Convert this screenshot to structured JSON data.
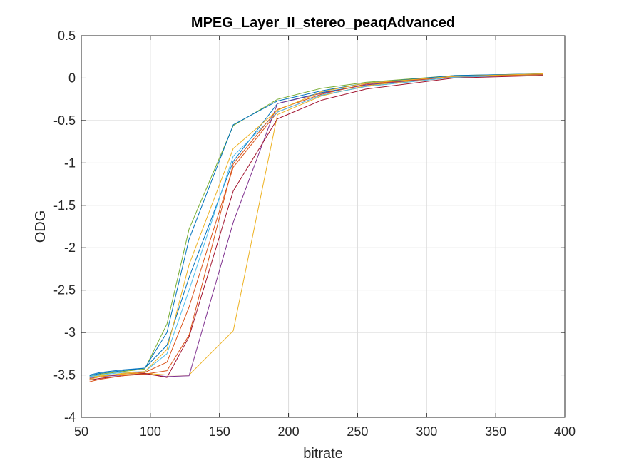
{
  "chart_data": {
    "type": "line",
    "title": "MPEG_Layer_II_stereo_peaqAdvanced",
    "xlabel": "bitrate",
    "ylabel": "ODG",
    "xlim": [
      50,
      400
    ],
    "ylim": [
      -4,
      0.5
    ],
    "xticks": [
      50,
      100,
      150,
      200,
      250,
      300,
      350,
      400
    ],
    "yticks": [
      -4,
      -3.5,
      -3,
      -2.5,
      -2,
      -1.5,
      -1,
      -0.5,
      0,
      0.5
    ],
    "xtick_labels": [
      "50",
      "100",
      "150",
      "200",
      "250",
      "300",
      "350",
      "400"
    ],
    "ytick_labels": [
      "-4",
      "-3.5",
      "-3",
      "-2.5",
      "-2",
      "-1.5",
      "-1",
      "-0.5",
      "0",
      "0.5"
    ],
    "grid": true,
    "x": [
      56,
      64,
      80,
      96,
      112,
      128,
      160,
      192,
      224,
      256,
      320,
      384
    ],
    "series": [
      {
        "color": "#0072BD",
        "values": [
          -3.51,
          -3.48,
          -3.45,
          -3.42,
          -3.15,
          -2.35,
          -0.98,
          -0.3,
          -0.17,
          -0.08,
          0.02,
          0.04
        ]
      },
      {
        "color": "#D95319",
        "values": [
          -3.55,
          -3.52,
          -3.49,
          -3.47,
          -3.35,
          -2.7,
          -1.05,
          -0.4,
          -0.2,
          -0.1,
          0.01,
          0.04
        ]
      },
      {
        "color": "#EDB120",
        "values": [
          -3.53,
          -3.51,
          -3.49,
          -3.48,
          -3.5,
          -3.5,
          -2.98,
          -0.43,
          -0.21,
          -0.09,
          0.02,
          0.04
        ]
      },
      {
        "color": "#7E2F8E",
        "values": [
          -3.54,
          -3.52,
          -3.5,
          -3.49,
          -3.52,
          -3.51,
          -1.7,
          -0.3,
          -0.18,
          -0.08,
          0.02,
          0.05
        ]
      },
      {
        "color": "#77AC30",
        "values": [
          -3.52,
          -3.49,
          -3.46,
          -3.43,
          -2.9,
          -1.78,
          -0.56,
          -0.25,
          -0.12,
          -0.05,
          0.03,
          0.05
        ]
      },
      {
        "color": "#4DBEEE",
        "values": [
          -3.52,
          -3.5,
          -3.47,
          -3.46,
          -3.25,
          -2.5,
          -0.92,
          -0.4,
          -0.2,
          -0.1,
          0.01,
          0.04
        ]
      },
      {
        "color": "#A2142F",
        "values": [
          -3.56,
          -3.54,
          -3.51,
          -3.48,
          -3.53,
          -3.05,
          -1.33,
          -0.48,
          -0.26,
          -0.13,
          0.0,
          0.03
        ]
      },
      {
        "color": "#0072BD",
        "values": [
          -3.5,
          -3.47,
          -3.44,
          -3.42,
          -3.0,
          -1.9,
          -0.55,
          -0.27,
          -0.15,
          -0.06,
          0.03,
          0.05
        ]
      },
      {
        "color": "#D95319",
        "values": [
          -3.58,
          -3.55,
          -3.51,
          -3.49,
          -3.45,
          -3.03,
          -1.01,
          -0.37,
          -0.19,
          -0.07,
          0.02,
          0.04
        ]
      },
      {
        "color": "#EDB120",
        "values": [
          -3.55,
          -3.52,
          -3.48,
          -3.46,
          -3.2,
          -2.2,
          -0.83,
          -0.38,
          -0.16,
          -0.06,
          0.02,
          0.05
        ]
      }
    ]
  }
}
